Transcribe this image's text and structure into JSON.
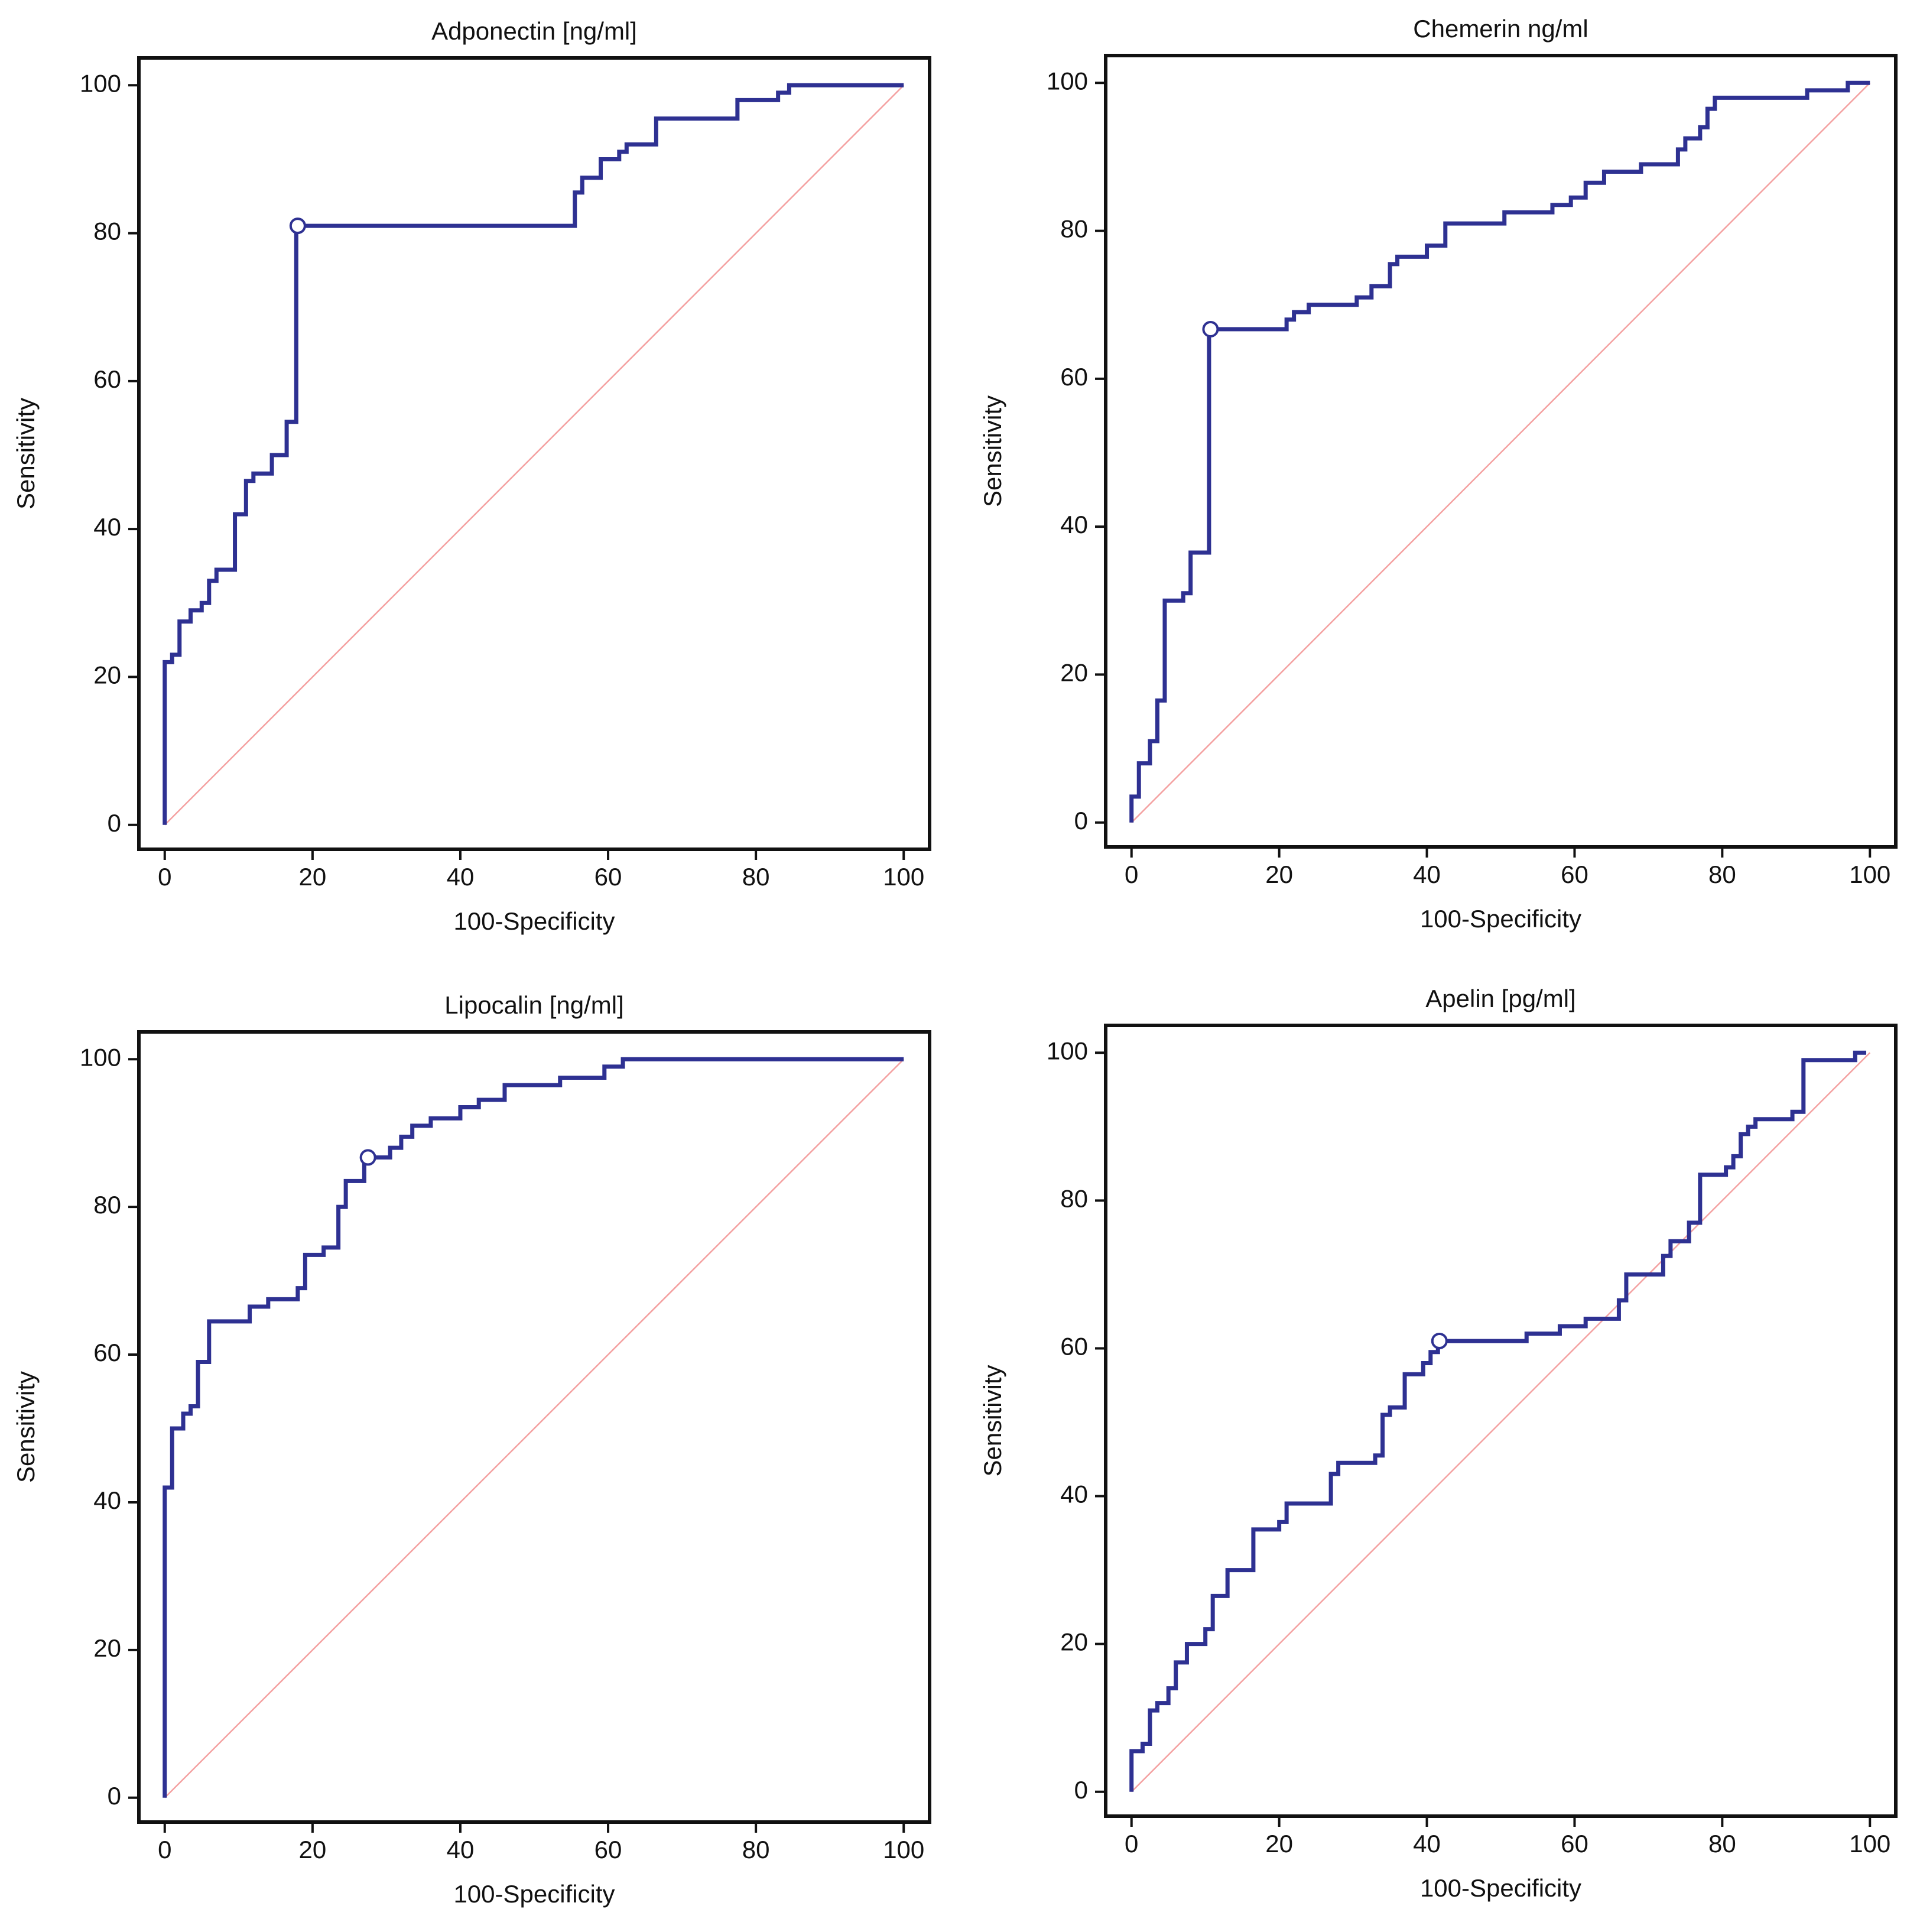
{
  "chart_data": [
    {
      "type": "line",
      "title": "Adponectin [ng/ml]",
      "xlabel": "100-Specificity",
      "ylabel": "Sensitivity",
      "xlim": [
        -3.5,
        103.5
      ],
      "ylim": [
        -3.3,
        103.7
      ],
      "xticks": [
        0,
        20,
        40,
        60,
        80,
        100
      ],
      "yticks": [
        0,
        20,
        40,
        60,
        80,
        100
      ],
      "series": [
        {
          "color": "#2e3192",
          "x": [
            0,
            0,
            1,
            1,
            2,
            2,
            3.5,
            3.5,
            5,
            5,
            6,
            6,
            7,
            7,
            9.5,
            9.5,
            11,
            11,
            12,
            12,
            14.5,
            14.5,
            16.5,
            16.5,
            17.8,
            17.8,
            55.5,
            55.5,
            56.5,
            56.5,
            59,
            59,
            61.5,
            61.5,
            62.5,
            62.5,
            66.5,
            66.5,
            77.5,
            77.5,
            83,
            83,
            84.5,
            84.5,
            100
          ],
          "values": [
            0,
            22,
            22,
            23,
            23,
            27.5,
            27.5,
            29,
            29,
            30,
            30,
            33,
            33,
            34.5,
            34.5,
            42,
            42,
            46.5,
            46.5,
            47.5,
            47.5,
            50,
            50,
            54.5,
            54.5,
            81,
            81,
            85.5,
            85.5,
            87.5,
            87.5,
            90,
            90,
            91,
            91,
            92,
            92,
            95.5,
            95.5,
            98,
            98,
            99,
            99,
            100,
            100
          ]
        },
        {
          "color": "#f4a0a0",
          "x": [
            0,
            100
          ],
          "values": [
            0,
            100
          ]
        }
      ],
      "markers": [
        {
          "x": 18,
          "y": 81
        }
      ]
    },
    {
      "type": "line",
      "title": "Chemerin ng/ml",
      "xlabel": "100-Specificity",
      "ylabel": "Sensitivity",
      "xlim": [
        -3.5,
        103.5
      ],
      "ylim": [
        -3.3,
        103.7
      ],
      "xticks": [
        0,
        20,
        40,
        60,
        80,
        100
      ],
      "yticks": [
        0,
        20,
        40,
        60,
        80,
        100
      ],
      "series": [
        {
          "color": "#2e3192",
          "x": [
            0,
            0,
            1,
            1,
            2.5,
            2.5,
            3.5,
            3.5,
            4.5,
            4.5,
            7,
            7,
            8,
            8,
            10.5,
            10.5,
            21,
            21,
            22,
            22,
            24,
            24,
            30.5,
            30.5,
            32.5,
            32.5,
            35,
            35,
            36,
            36,
            40,
            40,
            42.5,
            42.5,
            50.5,
            50.5,
            57,
            57,
            59.5,
            59.5,
            61.5,
            61.5,
            64,
            64,
            69,
            69,
            74,
            74,
            75,
            75,
            77,
            77,
            78,
            78,
            79,
            79,
            91.5,
            91.5,
            97,
            97,
            100
          ],
          "values": [
            0,
            3.5,
            3.5,
            8,
            8,
            11,
            11,
            16.5,
            16.5,
            30,
            30,
            31,
            31,
            36.5,
            36.5,
            66.7,
            66.7,
            68,
            68,
            69,
            69,
            70,
            70,
            71,
            71,
            72.5,
            72.5,
            75.5,
            75.5,
            76.5,
            76.5,
            78,
            78,
            81,
            81,
            82.5,
            82.5,
            83.5,
            83.5,
            84.5,
            84.5,
            86.5,
            86.5,
            88,
            88,
            89,
            89,
            91,
            91,
            92.5,
            92.5,
            94,
            94,
            96.5,
            96.5,
            98,
            98,
            99,
            99,
            100,
            100
          ]
        },
        {
          "color": "#f4a0a0",
          "x": [
            0,
            100
          ],
          "values": [
            0,
            100
          ]
        }
      ],
      "markers": [
        {
          "x": 10.7,
          "y": 66.7
        }
      ]
    },
    {
      "type": "line",
      "title": "Lipocalin [ng/ml]",
      "xlabel": "100-Specificity",
      "ylabel": "Sensitivity",
      "xlim": [
        -3.5,
        103.5
      ],
      "ylim": [
        -3.3,
        103.7
      ],
      "xticks": [
        0,
        20,
        40,
        60,
        80,
        100
      ],
      "yticks": [
        0,
        20,
        40,
        60,
        80,
        100
      ],
      "series": [
        {
          "color": "#2e3192",
          "x": [
            0,
            0,
            1,
            1,
            2.5,
            2.5,
            3.5,
            3.5,
            4.5,
            4.5,
            6,
            6,
            11.5,
            11.5,
            14,
            14,
            18,
            18,
            19,
            19,
            21.5,
            21.5,
            23.5,
            23.5,
            24.5,
            24.5,
            27,
            27,
            30.5,
            30.5,
            32,
            32,
            33.5,
            33.5,
            36,
            36,
            40,
            40,
            42.5,
            42.5,
            46,
            46,
            53.5,
            53.5,
            59.5,
            59.5,
            62,
            62,
            100
          ],
          "values": [
            0,
            42,
            42,
            50,
            50,
            52,
            52,
            53,
            53,
            59,
            59,
            64.5,
            64.5,
            66.5,
            66.5,
            67.5,
            67.5,
            69,
            69,
            73.5,
            73.5,
            74.5,
            74.5,
            80,
            80,
            83.5,
            83.5,
            86.7,
            86.7,
            88,
            88,
            89.5,
            89.5,
            91,
            91,
            92,
            92,
            93.5,
            93.5,
            94.5,
            94.5,
            96.5,
            96.5,
            97.5,
            97.5,
            99,
            99,
            100,
            100
          ]
        },
        {
          "color": "#f4a0a0",
          "x": [
            0,
            100
          ],
          "values": [
            0,
            100
          ]
        }
      ],
      "markers": [
        {
          "x": 27.5,
          "y": 86.7
        }
      ]
    },
    {
      "type": "line",
      "title": "Apelin [pg/ml]",
      "xlabel": "100-Specificity",
      "ylabel": "Sensitivity",
      "xlim": [
        -3.5,
        103.5
      ],
      "ylim": [
        -3.3,
        103.7
      ],
      "xticks": [
        0,
        20,
        40,
        60,
        80,
        100
      ],
      "yticks": [
        0,
        20,
        40,
        60,
        80,
        100
      ],
      "series": [
        {
          "color": "#2e3192",
          "x": [
            0,
            0,
            1.5,
            1.5,
            2.5,
            2.5,
            3.5,
            3.5,
            5,
            5,
            6,
            6,
            7.5,
            7.5,
            10,
            10,
            11,
            11,
            13,
            13,
            16.5,
            16.5,
            20,
            20,
            21,
            21,
            27,
            27,
            28,
            28,
            33,
            33,
            34,
            34,
            35,
            35,
            37,
            37,
            39.5,
            39.5,
            40.5,
            40.5,
            41.5,
            41.5,
            53.5,
            53.5,
            58,
            58,
            61.5,
            61.5,
            66,
            66,
            67,
            67,
            72,
            72,
            73,
            73,
            75.5,
            75.5,
            77,
            77,
            80.5,
            80.5,
            81.5,
            81.5,
            82.5,
            82.5,
            83.5,
            83.5,
            84.5,
            84.5,
            89.5,
            89.5,
            91,
            91,
            98,
            98,
            99.5
          ],
          "values": [
            0,
            5.5,
            5.5,
            6.5,
            6.5,
            11,
            11,
            12,
            12,
            14,
            14,
            17.5,
            17.5,
            20,
            20,
            22,
            22,
            26.5,
            26.5,
            30,
            30,
            35.5,
            35.5,
            36.5,
            36.5,
            39,
            39,
            43,
            43,
            44.5,
            44.5,
            45.5,
            45.5,
            51,
            51,
            52,
            52,
            56.5,
            56.5,
            58,
            58,
            59.5,
            59.5,
            61,
            61,
            62,
            62,
            63,
            63,
            64,
            64,
            66.5,
            66.5,
            70,
            70,
            72.5,
            72.5,
            74.5,
            74.5,
            77,
            77,
            83.5,
            83.5,
            84.5,
            84.5,
            86,
            86,
            89,
            89,
            90,
            90,
            91,
            91,
            92,
            92,
            99,
            99,
            100,
            100
          ]
        },
        {
          "color": "#f4a0a0",
          "x": [
            0,
            100
          ],
          "values": [
            0,
            100
          ]
        }
      ],
      "markers": [
        {
          "x": 41.7,
          "y": 61
        }
      ]
    }
  ]
}
